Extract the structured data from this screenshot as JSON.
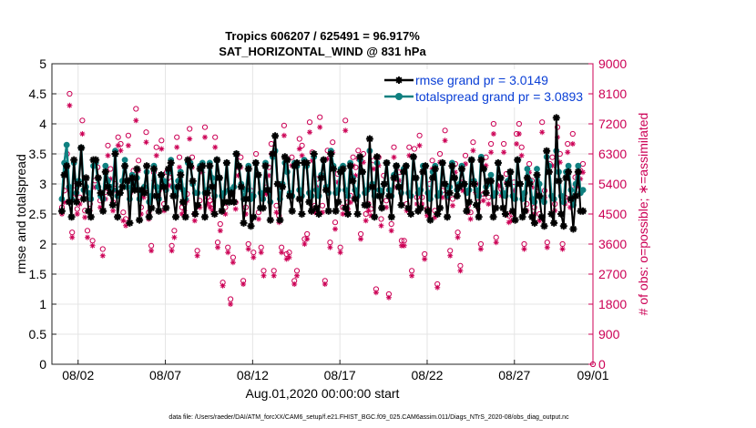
{
  "chart_data": {
    "type": "line",
    "title": "Tropics 606207 / 625491 = 96.917%",
    "subtitle": "SAT_HORIZONTAL_WIND @ 831 hPa",
    "xlabel": "Aug.01,2020 00:00:00 start",
    "ylabel": "rmse and totalspread",
    "y2label": "# of obs: o=possible; ∗=assimilated",
    "footer": "data file: /Users/raeder/DAI/ATM_forcXX/CAM6_setup/f.e21.FHIST_BGC.f09_025.CAM6assim.011/Diags_NTrS_2020-08/obs_diag_output.nc",
    "xlim": [
      0.5,
      31.5
    ],
    "ylim": [
      0,
      5
    ],
    "y2lim": [
      0,
      9000
    ],
    "xticks": [
      {
        "x": 2,
        "label": "08/02"
      },
      {
        "x": 7,
        "label": "08/07"
      },
      {
        "x": 12,
        "label": "08/12"
      },
      {
        "x": 17,
        "label": "08/17"
      },
      {
        "x": 22,
        "label": "08/22"
      },
      {
        "x": 27,
        "label": "08/27"
      },
      {
        "x": 32,
        "label": "09/01"
      }
    ],
    "yticks": [
      "0",
      "0.5",
      "1",
      "1.5",
      "2",
      "2.5",
      "3",
      "3.5",
      "4",
      "4.5",
      "5"
    ],
    "y2ticks": [
      "0",
      "900",
      "1800",
      "2700",
      "3600",
      "4500",
      "5400",
      "6300",
      "7200",
      "8100",
      "9000"
    ],
    "grid": true,
    "legend_position": "top-right",
    "colors": {
      "rmse": "#000000",
      "spread": "#0f8080",
      "obs": "#cc0055",
      "legend_text": "#0a3fd6"
    },
    "series": [
      {
        "name": "rmse grand pr = 3.0149",
        "color": "#000000",
        "marker": "asterisk",
        "values": [
          2.55,
          3.15,
          3.3,
          2.7,
          2.45,
          3.4,
          2.7,
          3.0,
          3.6,
          2.75,
          3.1,
          2.55,
          2.45,
          3.4,
          3.4,
          3.1,
          2.85,
          2.55,
          3.2,
          2.95,
          2.85,
          2.65,
          3.5,
          2.45,
          2.85,
          2.95,
          3.3,
          3.05,
          2.35,
          3.1,
          2.9,
          3.25,
          2.4,
          2.9,
          2.85,
          3.3,
          2.45,
          2.6,
          3.25,
          2.8,
          2.55,
          3.15,
          2.95,
          2.6,
          3.25,
          3.35,
          2.8,
          2.45,
          2.95,
          3.15,
          2.7,
          2.45,
          3.4,
          3.3,
          3.05,
          2.5,
          2.65,
          3.25,
          3.3,
          2.45,
          2.85,
          3.3,
          2.95,
          2.5,
          3.4,
          3.1,
          2.55,
          2.7,
          3.35,
          2.7,
          2.85,
          2.7,
          3.5,
          3.3,
          2.95,
          2.35,
          2.75,
          3.25,
          2.3,
          2.45,
          3.35,
          3.15,
          2.6,
          2.6,
          3.3,
          2.9,
          2.4,
          3.5,
          3.8,
          3.0,
          2.4,
          2.95,
          3.45,
          3.4,
          2.8,
          2.55,
          3.3,
          3.35,
          2.75,
          2.5,
          3.35,
          3.35,
          2.7,
          2.55,
          3.5,
          2.6,
          2.5,
          3.1,
          3.4,
          2.9,
          2.55,
          3.5,
          3.25,
          2.55,
          2.7,
          3.2,
          3.25,
          2.6,
          2.5,
          3.3,
          3.05,
          2.75,
          2.5,
          3.45,
          3.2,
          2.65,
          2.65,
          3.75,
          2.95,
          2.45,
          3.45,
          2.8,
          2.6,
          3.0,
          3.35,
          2.8,
          2.45,
          3.1,
          3.3,
          2.95,
          2.65,
          3.2,
          3.3,
          2.6,
          2.5,
          3.45,
          3.1,
          2.55,
          2.6,
          3.2,
          3.3,
          2.55,
          2.4,
          3.1,
          3.25,
          2.5,
          2.6,
          3.35,
          3.0,
          2.45,
          2.85,
          3.3,
          3.1,
          2.8,
          2.95,
          3.25,
          3.0,
          2.55,
          2.7,
          3.4,
          3.0,
          2.65,
          2.45,
          3.4,
          3.25,
          2.85,
          3.05,
          3.05,
          2.45,
          2.6,
          3.35,
          3.1,
          2.6,
          2.5,
          3.0,
          3.2,
          2.55,
          2.4,
          3.4,
          3.0,
          2.45,
          2.55,
          3.1,
          3.0,
          2.45,
          2.35,
          3.15,
          2.8,
          2.45,
          2.3,
          3.55,
          3.2,
          2.5,
          2.35,
          4.1,
          3.05,
          2.5,
          2.3,
          3.1,
          3.2,
          2.75,
          2.25,
          2.8,
          3.2,
          2.55,
          2.55
        ]
      },
      {
        "name": "totalspread grand pr = 3.0893",
        "color": "#0f8080",
        "marker": "circle",
        "values": [
          2.75,
          3.35,
          3.65,
          2.95,
          2.75,
          3.35,
          2.85,
          3.05,
          3.6,
          2.9,
          2.95,
          2.85,
          2.75,
          3.3,
          3.35,
          2.95,
          2.8,
          2.75,
          3.3,
          3.05,
          2.95,
          2.9,
          3.55,
          2.8,
          2.85,
          3.05,
          3.4,
          2.95,
          2.75,
          3.15,
          2.95,
          3.1,
          2.75,
          2.9,
          2.95,
          3.2,
          2.7,
          2.8,
          3.3,
          2.95,
          2.75,
          3.15,
          3.05,
          2.9,
          3.2,
          3.4,
          2.95,
          2.8,
          3.05,
          3.2,
          2.9,
          2.75,
          3.35,
          3.35,
          3.0,
          2.85,
          2.85,
          3.3,
          3.35,
          2.85,
          2.9,
          3.35,
          3.1,
          2.8,
          3.4,
          3.1,
          2.8,
          2.85,
          3.35,
          2.9,
          2.9,
          2.95,
          3.5,
          3.3,
          3.0,
          2.75,
          2.9,
          3.3,
          2.75,
          2.8,
          3.35,
          3.15,
          2.85,
          2.75,
          3.35,
          2.9,
          2.7,
          3.45,
          3.55,
          3.0,
          2.75,
          3.0,
          3.35,
          3.2,
          2.85,
          2.8,
          3.35,
          3.3,
          2.9,
          2.8,
          3.4,
          3.3,
          2.85,
          2.8,
          3.45,
          2.9,
          2.8,
          3.15,
          3.4,
          2.95,
          2.85,
          3.55,
          3.3,
          2.85,
          2.9,
          3.25,
          3.3,
          2.9,
          2.8,
          3.35,
          3.1,
          2.9,
          2.8,
          3.4,
          3.2,
          2.85,
          2.9,
          3.55,
          3.0,
          2.8,
          3.35,
          2.9,
          2.85,
          3.0,
          3.35,
          2.9,
          2.8,
          3.15,
          3.3,
          2.95,
          2.85,
          3.25,
          3.3,
          2.85,
          2.8,
          3.45,
          3.1,
          2.85,
          2.9,
          3.3,
          3.3,
          2.85,
          2.75,
          3.2,
          3.3,
          2.8,
          2.85,
          3.35,
          3.0,
          2.8,
          2.95,
          3.35,
          3.1,
          2.9,
          3.0,
          3.3,
          3.0,
          2.85,
          2.9,
          3.4,
          3.05,
          2.9,
          2.8,
          3.45,
          3.25,
          2.95,
          3.0,
          3.15,
          2.8,
          2.85,
          3.35,
          3.1,
          2.85,
          2.8,
          3.05,
          3.2,
          2.8,
          2.75,
          3.4,
          3.0,
          2.75,
          2.85,
          3.25,
          3.05,
          2.75,
          2.7,
          3.25,
          3.0,
          2.75,
          2.7,
          3.45,
          3.3,
          2.8,
          2.75,
          3.55,
          3.2,
          2.8,
          2.7,
          3.2,
          3.3,
          2.9,
          2.65,
          3.0,
          3.3,
          2.85,
          2.9
        ]
      },
      {
        "name": "obs possible",
        "color": "#cc0055",
        "marker": "circle-open",
        "axis": "right",
        "values": [
          4700,
          5200,
          6300,
          8100,
          3950,
          5350,
          4650,
          5000,
          7300,
          4600,
          4000,
          4800,
          3700,
          5500,
          5900,
          4900,
          3450,
          5150,
          6550,
          5850,
          4850,
          5400,
          6800,
          6600,
          4550,
          4350,
          6850,
          5400,
          5800,
          7650,
          6100,
          4700,
          5250,
          6950,
          4550,
          3550,
          5750,
          6500,
          5200,
          6700,
          4800,
          5750,
          5600,
          3550,
          4000,
          6800,
          6200,
          4700,
          4800,
          5100,
          7050,
          6200,
          4500,
          3400,
          4900,
          6000,
          7100,
          5000,
          4900,
          4800,
          6800,
          3650,
          4200,
          2450,
          4700,
          3500,
          1950,
          3200,
          4850,
          5900,
          6200,
          2500,
          4700,
          3600,
          5200,
          3350,
          6300,
          4550,
          3500,
          2800,
          5300,
          5900,
          6600,
          2800,
          4750,
          4450,
          3500,
          7150,
          3300,
          3350,
          6200,
          2500,
          2800,
          6750,
          6550,
          3750,
          3900,
          7250,
          6350,
          4750,
          5550,
          7400,
          4750,
          2500,
          6400,
          3650,
          6650,
          4250,
          5700,
          3500,
          4700,
          7300,
          4850,
          5050,
          6200,
          5900,
          6400,
          3900,
          6300,
          4500,
          4800,
          4650,
          6100,
          2250,
          6200,
          4350,
          5650,
          4900,
          2100,
          4200,
          6500,
          5550,
          5750,
          3700,
          3700,
          4800,
          6500,
          2800,
          6450,
          5000,
          6850,
          5000,
          3300,
          4650,
          5400,
          6100,
          4600,
          2400,
          6300,
          5200,
          7000,
          5250,
          3400,
          4950,
          6000,
          3950,
          2950,
          5450,
          6250,
          4750,
          4550,
          6650,
          5400,
          4850,
          3600,
          5100,
          6200,
          5000,
          6600,
          7200,
          3800,
          5600,
          5250,
          6600,
          5700,
          4450,
          4500,
          5450,
          6900,
          7200,
          6500,
          3600,
          4800,
          6000,
          5500,
          4700,
          5300,
          4500,
          7250,
          5200,
          3650,
          6000,
          6200,
          4800,
          7100,
          6300,
          3600,
          5000,
          6600,
          4900,
          6900,
          5600,
          5600,
          5800,
          6000
        ]
      },
      {
        "name": "obs assimilated",
        "color": "#cc0055",
        "marker": "asterisk",
        "axis": "right",
        "values": [
          4500,
          4850,
          5900,
          7750,
          3800,
          5100,
          4500,
          4800,
          6900,
          4400,
          3800,
          4600,
          3550,
          5300,
          5600,
          4700,
          3250,
          4950,
          6250,
          5550,
          4600,
          5200,
          6550,
          6400,
          4300,
          4150,
          6550,
          5150,
          5500,
          7300,
          5800,
          4500,
          5000,
          6650,
          4350,
          3400,
          5500,
          6250,
          5000,
          6450,
          4600,
          5500,
          5350,
          3400,
          3800,
          6500,
          5900,
          4500,
          4600,
          4900,
          6750,
          5900,
          4300,
          3250,
          4700,
          5750,
          6800,
          4800,
          4700,
          4600,
          6500,
          3500,
          4000,
          2350,
          4500,
          3350,
          1800,
          3050,
          4650,
          5650,
          5900,
          2400,
          4500,
          3450,
          5000,
          3200,
          6050,
          4350,
          3350,
          2650,
          5100,
          5650,
          6300,
          2650,
          4550,
          4250,
          3350,
          6850,
          3150,
          3200,
          5950,
          2400,
          2650,
          6450,
          6250,
          3600,
          3750,
          6950,
          6100,
          4550,
          5300,
          7100,
          4550,
          2400,
          6150,
          3500,
          6350,
          4050,
          5450,
          3350,
          4500,
          7000,
          4650,
          4850,
          5950,
          5650,
          6150,
          3750,
          6050,
          4300,
          4600,
          4450,
          5850,
          2150,
          5950,
          4150,
          5400,
          4700,
          2000,
          4000,
          6200,
          5300,
          5500,
          3550,
          3550,
          4600,
          6250,
          2650,
          6200,
          4800,
          6550,
          4800,
          3150,
          4450,
          5150,
          5850,
          4400,
          2300,
          6050,
          5000,
          6700,
          5000,
          3250,
          4750,
          5750,
          3800,
          2800,
          5200,
          6000,
          4550,
          4350,
          6400,
          5150,
          4650,
          3450,
          4900,
          5950,
          4800,
          6350,
          6900,
          3650,
          5350,
          5050,
          6350,
          5450,
          4250,
          4300,
          5200,
          6600,
          6900,
          6250,
          3450,
          4600,
          5750,
          5300,
          4500,
          5100,
          4300,
          6950,
          5000,
          3500,
          5750,
          5950,
          4600,
          6800,
          6050,
          3450,
          4800,
          6350,
          4700,
          6600,
          5350,
          5350,
          5550,
          5750
        ]
      }
    ],
    "legend": [
      "rmse grand pr = 3.0149",
      "totalspread grand pr = 3.0893"
    ]
  }
}
